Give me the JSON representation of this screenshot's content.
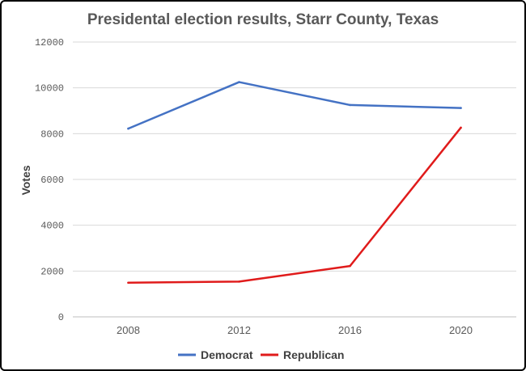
{
  "chart_data": {
    "type": "line",
    "title": "Presidental election results, Starr County, Texas",
    "xlabel": "",
    "ylabel": "Votes",
    "categories": [
      "2008",
      "2012",
      "2016",
      "2020"
    ],
    "ylim": [
      0,
      12000
    ],
    "yticks": [
      "0",
      "2000",
      "4000",
      "6000",
      "8000",
      "10000",
      "12000"
    ],
    "grid": true,
    "legend_position": "bottom",
    "series": [
      {
        "name": "Democrat",
        "values": [
          8220,
          10250,
          9250,
          9120
        ],
        "color": "#4472C4"
      },
      {
        "name": "Republican",
        "values": [
          1490,
          1540,
          2220,
          8260
        ],
        "color": "#E01B1B"
      }
    ]
  }
}
